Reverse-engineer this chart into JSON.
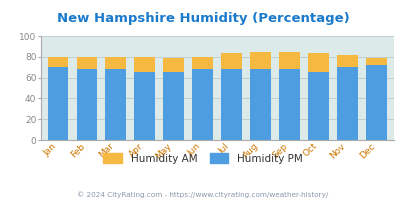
{
  "title": "New Hampshire Humidity (Percentage)",
  "months": [
    "Jan",
    "Feb",
    "Mar",
    "Apr",
    "May",
    "Jun",
    "Jul",
    "Aug",
    "Sep",
    "Oct",
    "Nov",
    "Dec"
  ],
  "humidity_pm": [
    70,
    68,
    68,
    65,
    65,
    68,
    68,
    68,
    68,
    65,
    70,
    72
  ],
  "humidity_am_total": [
    80,
    80,
    80,
    80,
    79,
    80,
    84,
    85,
    85,
    84,
    82,
    79
  ],
  "color_pm": "#4d9de0",
  "color_am": "#f5b942",
  "bg_color": "#ddeaea",
  "title_color": "#1a7acc",
  "ylim": [
    0,
    100
  ],
  "yticks": [
    0,
    20,
    40,
    60,
    80,
    100
  ],
  "legend_am": "Humidity AM",
  "legend_pm": "Humidity PM",
  "legend_text_color": "#333333",
  "footer": "© 2024 CityRating.com - https://www.cityrating.com/weather-history/",
  "footer_color": "#8899aa",
  "xtick_color": "#cc7700",
  "ytick_color": "#888888",
  "grid_color": "#bbcccc"
}
